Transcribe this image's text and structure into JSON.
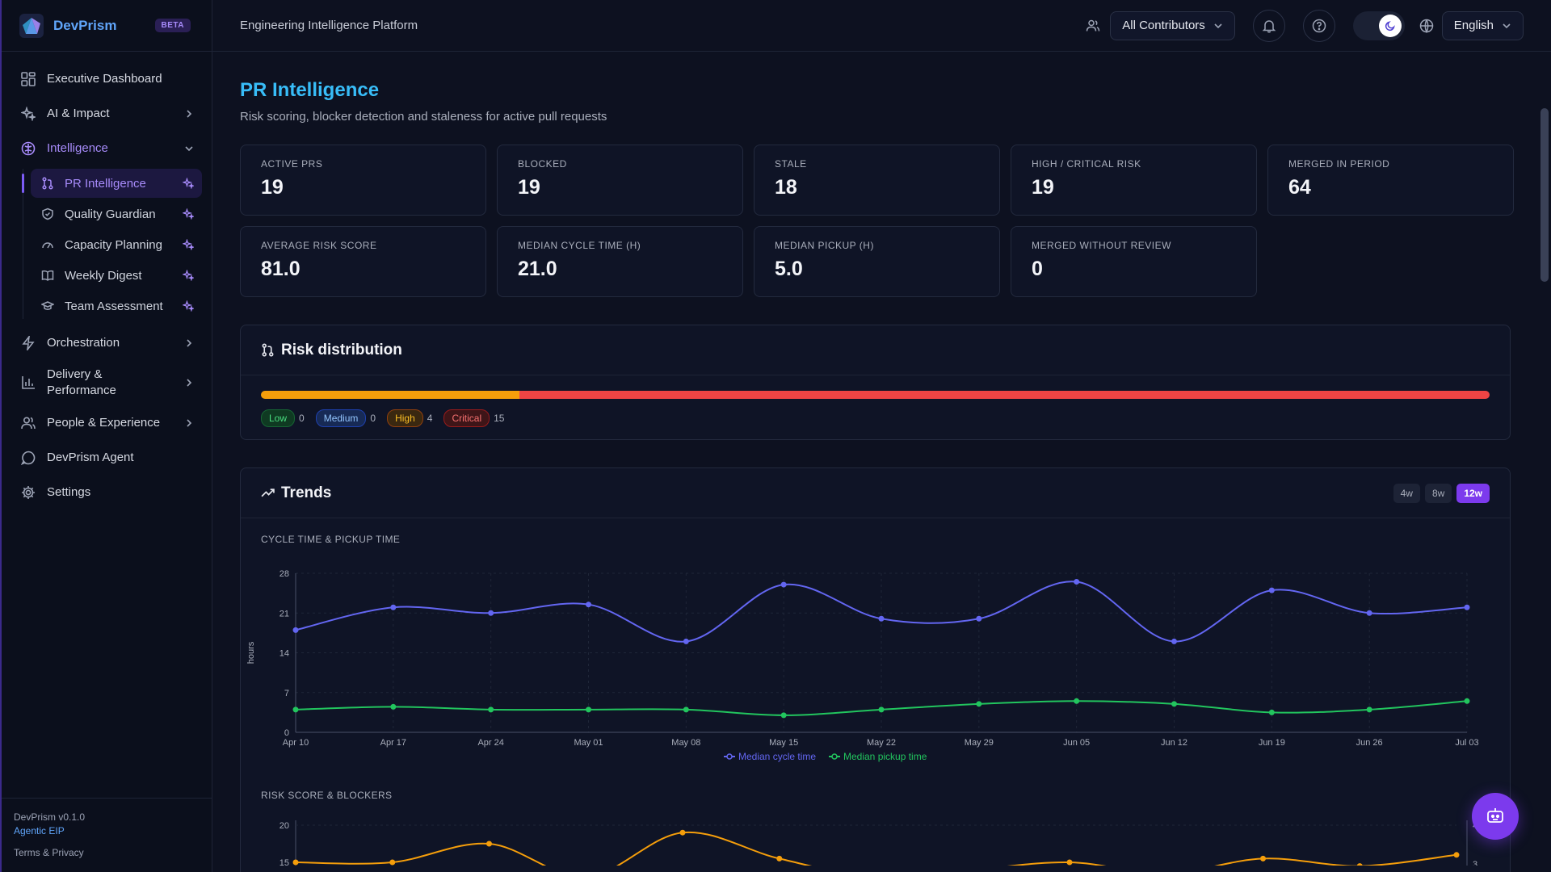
{
  "app": {
    "brand": "DevPrism",
    "badge": "BETA",
    "platform_title": "Engineering Intelligence Platform",
    "accent": "#7c3aed"
  },
  "topbar": {
    "contributors_select": "All Contributors",
    "language_select": "English",
    "icons": [
      "people-icon",
      "bell-icon",
      "help-icon",
      "moon-icon",
      "globe-icon"
    ]
  },
  "sidebar": {
    "items": [
      {
        "label": "Executive Dashboard",
        "icon": "dashboard-icon"
      },
      {
        "label": "AI & Impact",
        "icon": "sparkles-icon"
      },
      {
        "label": "Intelligence",
        "icon": "brain-icon",
        "expanded": true
      },
      {
        "label": "Orchestration",
        "icon": "zap-icon"
      },
      {
        "label": "Delivery & Performance",
        "icon": "bar-chart-icon"
      },
      {
        "label": "People & Experience",
        "icon": "users-icon"
      },
      {
        "label": "DevPrism Agent",
        "icon": "chat-icon"
      },
      {
        "label": "Settings",
        "icon": "gear-icon"
      }
    ],
    "intelligence_children": [
      {
        "label": "PR Intelligence",
        "icon": "git-pull-request-icon",
        "active": true
      },
      {
        "label": "Quality Guardian",
        "icon": "shield-icon"
      },
      {
        "label": "Capacity Planning",
        "icon": "gauge-icon"
      },
      {
        "label": "Weekly Digest",
        "icon": "book-icon"
      },
      {
        "label": "Team Assessment",
        "icon": "graduation-cap-icon"
      }
    ],
    "footer": {
      "version": "DevPrism v0.1.0",
      "tagline": "Agentic EIP",
      "terms": "Terms & Privacy"
    }
  },
  "page": {
    "title": "PR Intelligence",
    "subtitle": "Risk scoring, blocker detection and staleness for active pull requests"
  },
  "kpis": [
    {
      "label": "ACTIVE PRS",
      "value": "19"
    },
    {
      "label": "BLOCKED",
      "value": "19"
    },
    {
      "label": "STALE",
      "value": "18"
    },
    {
      "label": "HIGH / CRITICAL RISK",
      "value": "19"
    },
    {
      "label": "MERGED IN PERIOD",
      "value": "64"
    },
    {
      "label": "AVERAGE RISK SCORE",
      "value": "81.0"
    },
    {
      "label": "MEDIAN CYCLE TIME (H)",
      "value": "21.0"
    },
    {
      "label": "MEDIAN PICKUP (H)",
      "value": "5.0"
    },
    {
      "label": "MERGED WITHOUT REVIEW",
      "value": "0"
    }
  ],
  "risk": {
    "title": "Risk distribution",
    "levels": [
      {
        "label": "Low",
        "count": "0",
        "color": "#22c55e"
      },
      {
        "label": "Medium",
        "count": "0",
        "color": "#3b82f6"
      },
      {
        "label": "High",
        "count": "4",
        "color": "#f59e0b"
      },
      {
        "label": "Critical",
        "count": "15",
        "color": "#ef4444"
      }
    ]
  },
  "trends": {
    "title": "Trends",
    "ranges": [
      "4w",
      "8w",
      "12w"
    ],
    "selected_range": "12w",
    "chart1_title": "CYCLE TIME & PICKUP TIME",
    "chart2_title": "RISK SCORE & BLOCKERS"
  },
  "chart_data": [
    {
      "type": "line",
      "title": "CYCLE TIME & PICKUP TIME",
      "ylabel": "hours",
      "ylim": [
        0,
        28
      ],
      "yticks": [
        0,
        7,
        14,
        21,
        28
      ],
      "x": [
        "Apr 10",
        "Apr 17",
        "Apr 24",
        "May 01",
        "May 08",
        "May 15",
        "May 22",
        "May 29",
        "Jun 05",
        "Jun 12",
        "Jun 19",
        "Jun 26",
        "Jul 03"
      ],
      "series": [
        {
          "name": "Median cycle time",
          "color": "#6366f1",
          "values": [
            18,
            22,
            21,
            22.5,
            16,
            26,
            20,
            20,
            26.5,
            16,
            25,
            21,
            22
          ]
        },
        {
          "name": "Median pickup time",
          "color": "#22c55e",
          "values": [
            4,
            4.5,
            4,
            4,
            4,
            3,
            4,
            5,
            5.5,
            5,
            3.5,
            4,
            5.5
          ]
        }
      ],
      "grid": true,
      "legend": "bottom-center"
    },
    {
      "type": "line",
      "title": "RISK SCORE & BLOCKERS",
      "y_visible_ticks": [
        15,
        20
      ],
      "y2_visible_ticks": [
        3,
        4
      ],
      "series": [
        {
          "color": "#f59e0b",
          "values": [
            15,
            15,
            17.5,
            13,
            19,
            15.5,
            13,
            14,
            15,
            13.5,
            15.5,
            14.5,
            16
          ]
        }
      ]
    }
  ]
}
